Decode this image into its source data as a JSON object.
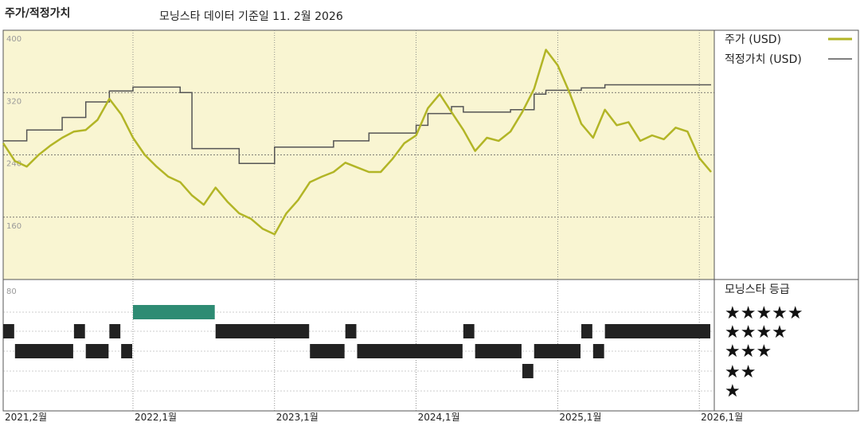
{
  "chart_data": {
    "type": "line",
    "title": "주가/적정가치",
    "subtitle": "모닝스타 데이터 기준일 11. 2월 2026",
    "price_axis": {
      "ylim": [
        80,
        400
      ],
      "ticks": [
        "400",
        "320",
        "240",
        "160"
      ],
      "bottom_tick": "80"
    },
    "x_ticks": [
      "2021,2월",
      "2022,1월",
      "2023,1월",
      "2024,1월",
      "2025,1월",
      "2026,1월"
    ],
    "x_range": [
      "2021-02",
      "2026-02"
    ],
    "legend": [
      "주가 (USD)",
      "적정가치 (USD)"
    ],
    "colors": {
      "price": "#b2b526",
      "fair_value": "#555555",
      "plot_bg": "#f9f5d2",
      "five_star": "#2e8b73",
      "bar": "#222222"
    },
    "series": [
      {
        "name": "주가 (USD)",
        "points": [
          [
            "2021-02",
            255
          ],
          [
            "2021-03",
            232
          ],
          [
            "2021-04",
            225
          ],
          [
            "2021-05",
            240
          ],
          [
            "2021-06",
            252
          ],
          [
            "2021-07",
            262
          ],
          [
            "2021-08",
            270
          ],
          [
            "2021-09",
            272
          ],
          [
            "2021-10",
            285
          ],
          [
            "2021-11",
            312
          ],
          [
            "2021-12",
            292
          ],
          [
            "2022-01",
            262
          ],
          [
            "2022-02",
            240
          ],
          [
            "2022-03",
            225
          ],
          [
            "2022-04",
            212
          ],
          [
            "2022-05",
            205
          ],
          [
            "2022-06",
            188
          ],
          [
            "2022-07",
            176
          ],
          [
            "2022-08",
            198
          ],
          [
            "2022-09",
            180
          ],
          [
            "2022-10",
            165
          ],
          [
            "2022-11",
            158
          ],
          [
            "2022-12",
            145
          ],
          [
            "2023-01",
            138
          ],
          [
            "2023-02",
            165
          ],
          [
            "2023-03",
            182
          ],
          [
            "2023-04",
            205
          ],
          [
            "2023-05",
            212
          ],
          [
            "2023-06",
            218
          ],
          [
            "2023-07",
            230
          ],
          [
            "2023-08",
            224
          ],
          [
            "2023-09",
            218
          ],
          [
            "2023-10",
            218
          ],
          [
            "2023-11",
            235
          ],
          [
            "2023-12",
            255
          ],
          [
            "2024-01",
            265
          ],
          [
            "2024-02",
            300
          ],
          [
            "2024-03",
            318
          ],
          [
            "2024-04",
            295
          ],
          [
            "2024-05",
            272
          ],
          [
            "2024-06",
            245
          ],
          [
            "2024-07",
            262
          ],
          [
            "2024-08",
            258
          ],
          [
            "2024-09",
            270
          ],
          [
            "2024-10",
            295
          ],
          [
            "2024-11",
            325
          ],
          [
            "2024-12",
            375
          ],
          [
            "2025-01",
            355
          ],
          [
            "2025-02",
            320
          ],
          [
            "2025-03",
            280
          ],
          [
            "2025-04",
            262
          ],
          [
            "2025-05",
            298
          ],
          [
            "2025-06",
            278
          ],
          [
            "2025-07",
            282
          ],
          [
            "2025-08",
            258
          ],
          [
            "2025-09",
            265
          ],
          [
            "2025-10",
            260
          ],
          [
            "2025-11",
            275
          ],
          [
            "2025-12",
            270
          ],
          [
            "2026-01",
            236
          ],
          [
            "2026-02",
            218
          ]
        ]
      },
      {
        "name": "적정가치 (USD)",
        "points": [
          [
            "2021-02",
            258
          ],
          [
            "2021-04",
            272
          ],
          [
            "2021-07",
            288
          ],
          [
            "2021-09",
            308
          ],
          [
            "2021-11",
            322
          ],
          [
            "2022-01",
            327
          ],
          [
            "2022-05",
            320
          ],
          [
            "2022-06",
            248
          ],
          [
            "2022-10",
            229
          ],
          [
            "2023-01",
            250
          ],
          [
            "2023-06",
            258
          ],
          [
            "2023-09",
            268
          ],
          [
            "2024-01",
            278
          ],
          [
            "2024-02",
            293
          ],
          [
            "2024-04",
            302
          ],
          [
            "2024-05",
            295
          ],
          [
            "2024-09",
            298
          ],
          [
            "2024-11",
            318
          ],
          [
            "2024-12",
            323
          ],
          [
            "2025-03",
            326
          ],
          [
            "2025-05",
            330
          ],
          [
            "2026-02",
            330
          ]
        ]
      }
    ],
    "rating_legend_title": "모닝스타 등급",
    "rating_labels": [
      "★★★★★",
      "★★★★",
      "★★★",
      "★★",
      "★"
    ],
    "ratings": [
      [
        "2021-02",
        4
      ],
      [
        "2021-03",
        3
      ],
      [
        "2021-08",
        4
      ],
      [
        "2021-09",
        3
      ],
      [
        "2021-11",
        4
      ],
      [
        "2021-12",
        3
      ],
      [
        "2022-01",
        5
      ],
      [
        "2022-08",
        4
      ],
      [
        "2023-04",
        3
      ],
      [
        "2023-07",
        4
      ],
      [
        "2023-08",
        3
      ],
      [
        "2024-05",
        4
      ],
      [
        "2024-06",
        3
      ],
      [
        "2024-10",
        2
      ],
      [
        "2024-11",
        3
      ],
      [
        "2025-03",
        4
      ],
      [
        "2025-04",
        3
      ],
      [
        "2025-05",
        4
      ],
      [
        "2026-02",
        4
      ]
    ]
  }
}
